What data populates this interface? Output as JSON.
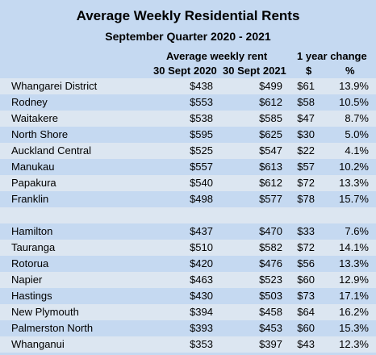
{
  "title": "Average Weekly Residential  Rents",
  "subtitle": "September Quarter 2020 - 2021",
  "headers": {
    "avg_rent": "Average weekly rent",
    "year_change": "1 year change",
    "col_2020": "30 Sept 2020",
    "col_2021": "30 Sept 2021",
    "col_dollar": "$",
    "col_pct": "%"
  },
  "groups": [
    {
      "rows": [
        {
          "name": "Whangarei District",
          "r2020": "$438",
          "r2021": "$499",
          "change": "$61",
          "pct": "13.9%"
        },
        {
          "name": "Rodney",
          "r2020": "$553",
          "r2021": "$612",
          "change": "$58",
          "pct": "10.5%"
        },
        {
          "name": "Waitakere",
          "r2020": "$538",
          "r2021": "$585",
          "change": "$47",
          "pct": "8.7%"
        },
        {
          "name": "North Shore",
          "r2020": "$595",
          "r2021": "$625",
          "change": "$30",
          "pct": "5.0%"
        },
        {
          "name": "Auckland Central",
          "r2020": "$525",
          "r2021": "$547",
          "change": "$22",
          "pct": "4.1%"
        },
        {
          "name": "Manukau",
          "r2020": "$557",
          "r2021": "$613",
          "change": "$57",
          "pct": "10.2%"
        },
        {
          "name": "Papakura",
          "r2020": "$540",
          "r2021": "$612",
          "change": "$72",
          "pct": "13.3%"
        },
        {
          "name": "Franklin",
          "r2020": "$498",
          "r2021": "$577",
          "change": "$78",
          "pct": "15.7%"
        }
      ]
    },
    {
      "rows": [
        {
          "name": "Hamilton",
          "r2020": "$437",
          "r2021": "$470",
          "change": "$33",
          "pct": "7.6%"
        },
        {
          "name": "Tauranga",
          "r2020": "$510",
          "r2021": "$582",
          "change": "$72",
          "pct": "14.1%"
        },
        {
          "name": "Rotorua",
          "r2020": "$420",
          "r2021": "$476",
          "change": "$56",
          "pct": "13.3%"
        },
        {
          "name": "Napier",
          "r2020": "$463",
          "r2021": "$523",
          "change": "$60",
          "pct": "12.9%"
        },
        {
          "name": "Hastings",
          "r2020": "$430",
          "r2021": "$503",
          "change": "$73",
          "pct": "17.1%"
        },
        {
          "name": "New Plymouth",
          "r2020": "$394",
          "r2021": "$458",
          "change": "$64",
          "pct": "16.2%"
        },
        {
          "name": "Palmerston North",
          "r2020": "$393",
          "r2021": "$453",
          "change": "$60",
          "pct": "15.3%"
        },
        {
          "name": "Whanganui",
          "r2020": "$353",
          "r2021": "$397",
          "change": "$43",
          "pct": "12.3%"
        }
      ]
    }
  ],
  "colors": {
    "background": "#c5d9f1",
    "row_alt": "#dce6f1"
  }
}
